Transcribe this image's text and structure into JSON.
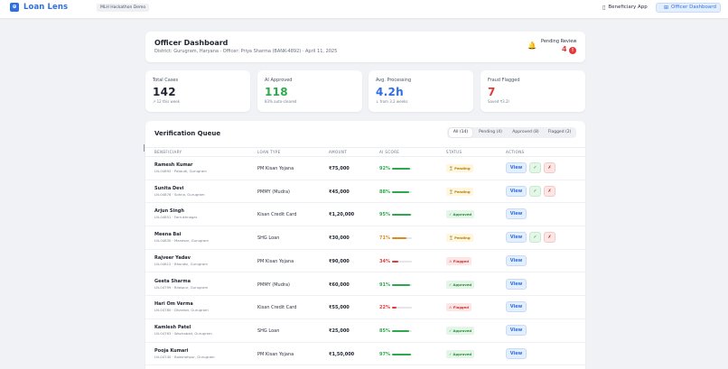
{
  "nav": {
    "logo_icon": "⊕",
    "logo_text": "Loan Lens",
    "tag": "MLH Hackathon Demo",
    "beneficiary_label": "Beneficiary App",
    "beneficiary_icon": "▯",
    "officer_label": "Officer Dashboard",
    "officer_icon": "⊞"
  },
  "header": {
    "title": "Officer Dashboard",
    "subtitle": "District: Gurugram, Haryana · Officer: Priya Sharma (BANK-4892) · April 11, 2025",
    "pending_label": "Pending Review",
    "pending_count": "4",
    "alert_badge": "!",
    "bell_icon": "🔔"
  },
  "stats": [
    {
      "label": "Total Cases",
      "value": "142",
      "sub": "↗ 12 this week",
      "color": "#1f2430"
    },
    {
      "label": "AI Approved",
      "value": "118",
      "sub": "83% auto-cleared",
      "color": "#2ea84a"
    },
    {
      "label": "Avg. Processing",
      "value": "4.2h",
      "sub": "↓ from 3.2 weeks",
      "color": "#2f6fe4"
    },
    {
      "label": "Fraud Flagged",
      "value": "7",
      "sub": "Saved ₹3.2l",
      "color": "#e03a3a"
    }
  ],
  "queue": {
    "title": "Verification Queue",
    "filters": [
      {
        "label": "All (14)",
        "active": true
      },
      {
        "label": "Pending (4)",
        "active": false
      },
      {
        "label": "Approved (8)",
        "active": false
      },
      {
        "label": "Flagged (2)",
        "active": false
      }
    ],
    "columns": [
      "BENEFICIARY",
      "LOAN TYPE",
      "AMOUNT",
      "AI SCORE",
      "STATUS",
      "ACTIONS"
    ],
    "view_label": "View",
    "approve_icon": "✓",
    "reject_icon": "✗",
    "rows": [
      {
        "name": "Ramesh Kumar",
        "meta": "LN-04892 · Pataudi, Gurugram",
        "type": "PM Kisan Yojana",
        "amount": "₹75,000",
        "score": "92%",
        "score_pct": 92,
        "status": "Pending",
        "status_icon": "⏳",
        "status_kind": "pending"
      },
      {
        "name": "Sunita Devi",
        "meta": "LN-04878 · Sohna, Gurugram",
        "type": "PMMY (Mudra)",
        "amount": "₹45,000",
        "score": "88%",
        "score_pct": 88,
        "status": "Pending",
        "status_icon": "⏳",
        "status_kind": "pending"
      },
      {
        "name": "Arjun Singh",
        "meta": "LN-04851 · Farrukhnagar",
        "type": "Kisan Credit Card",
        "amount": "₹1,20,000",
        "score": "95%",
        "score_pct": 95,
        "status": "Approved",
        "status_icon": "✓",
        "status_kind": "approved"
      },
      {
        "name": "Meena Bai",
        "meta": "LN-04830 · Manesar, Gurugram",
        "type": "SHG Loan",
        "amount": "₹30,000",
        "score": "71%",
        "score_pct": 71,
        "status": "Pending",
        "status_icon": "⏳",
        "status_kind": "pending"
      },
      {
        "name": "Rajveer Yadav",
        "meta": "LN-04812 · Bhondsi, Gurugram",
        "type": "PM Kisan Yojana",
        "amount": "₹90,000",
        "score": "34%",
        "score_pct": 34,
        "status": "Flagged",
        "status_icon": "⚠",
        "status_kind": "flagged"
      },
      {
        "name": "Geeta Sharma",
        "meta": "LN-04799 · Bilaspur, Gurugram",
        "type": "PMMY (Mudra)",
        "amount": "₹60,000",
        "score": "91%",
        "score_pct": 91,
        "status": "Approved",
        "status_icon": "✓",
        "status_kind": "approved"
      },
      {
        "name": "Hari Om Verma",
        "meta": "LN-04780 · Dhankot, Gurugram",
        "type": "Kisan Credit Card",
        "amount": "₹55,000",
        "score": "22%",
        "score_pct": 22,
        "status": "Flagged",
        "status_icon": "⚠",
        "status_kind": "flagged"
      },
      {
        "name": "Kamlesh Patel",
        "meta": "LN-04763 · Wazirabad, Gurugram",
        "type": "SHG Loan",
        "amount": "₹25,000",
        "score": "85%",
        "score_pct": 85,
        "status": "Approved",
        "status_icon": "✓",
        "status_kind": "approved"
      },
      {
        "name": "Pooja Kumari",
        "meta": "LN-04740 · Badshahpur, Gurugram",
        "type": "PM Kisan Yojana",
        "amount": "₹1,50,000",
        "score": "97%",
        "score_pct": 97,
        "status": "Approved",
        "status_icon": "✓",
        "status_kind": "approved"
      }
    ]
  }
}
